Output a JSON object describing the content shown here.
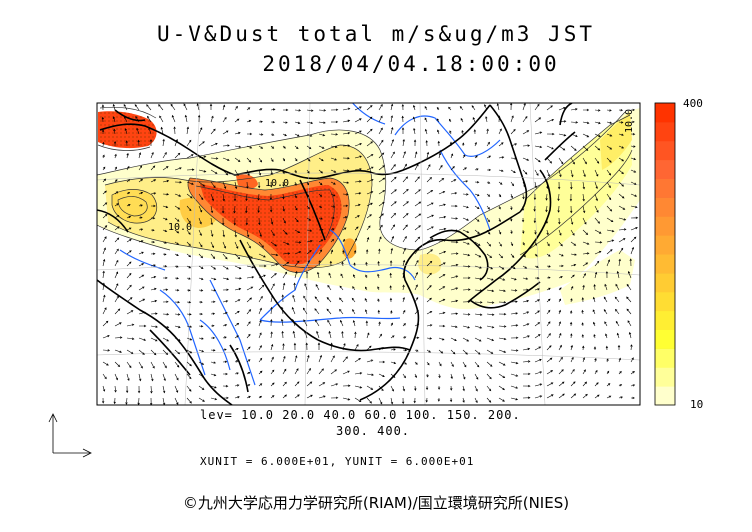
{
  "title": {
    "line1": "U-V&Dust total m/s&ug/m3 JST",
    "line2": "2018/04/04.18:00:00"
  },
  "contour_labels": [
    "10.0",
    "10.0",
    "10.0"
  ],
  "levels": {
    "line1": "lev= 10.0 20.0 40.0 60.0 100. 150. 200.",
    "line2": "300. 400."
  },
  "vector_units": "XUNIT = 6.000E+01, YUNIT = 6.000E+01",
  "colorbar": {
    "max_label": "400",
    "min_label": "10",
    "colors": [
      "#ffffcc",
      "#ffff99",
      "#ffff66",
      "#ffff33",
      "#ffee33",
      "#ffdd33",
      "#ffcc33",
      "#ffbb33",
      "#ffaa33",
      "#ff9933",
      "#ff8833",
      "#ff7733",
      "#ff6633",
      "#ff5522",
      "#ff4411",
      "#ff3300"
    ]
  },
  "credit": "©九州大学応用力学研究所(RIAM)/国立環境研究所(NIES)"
}
